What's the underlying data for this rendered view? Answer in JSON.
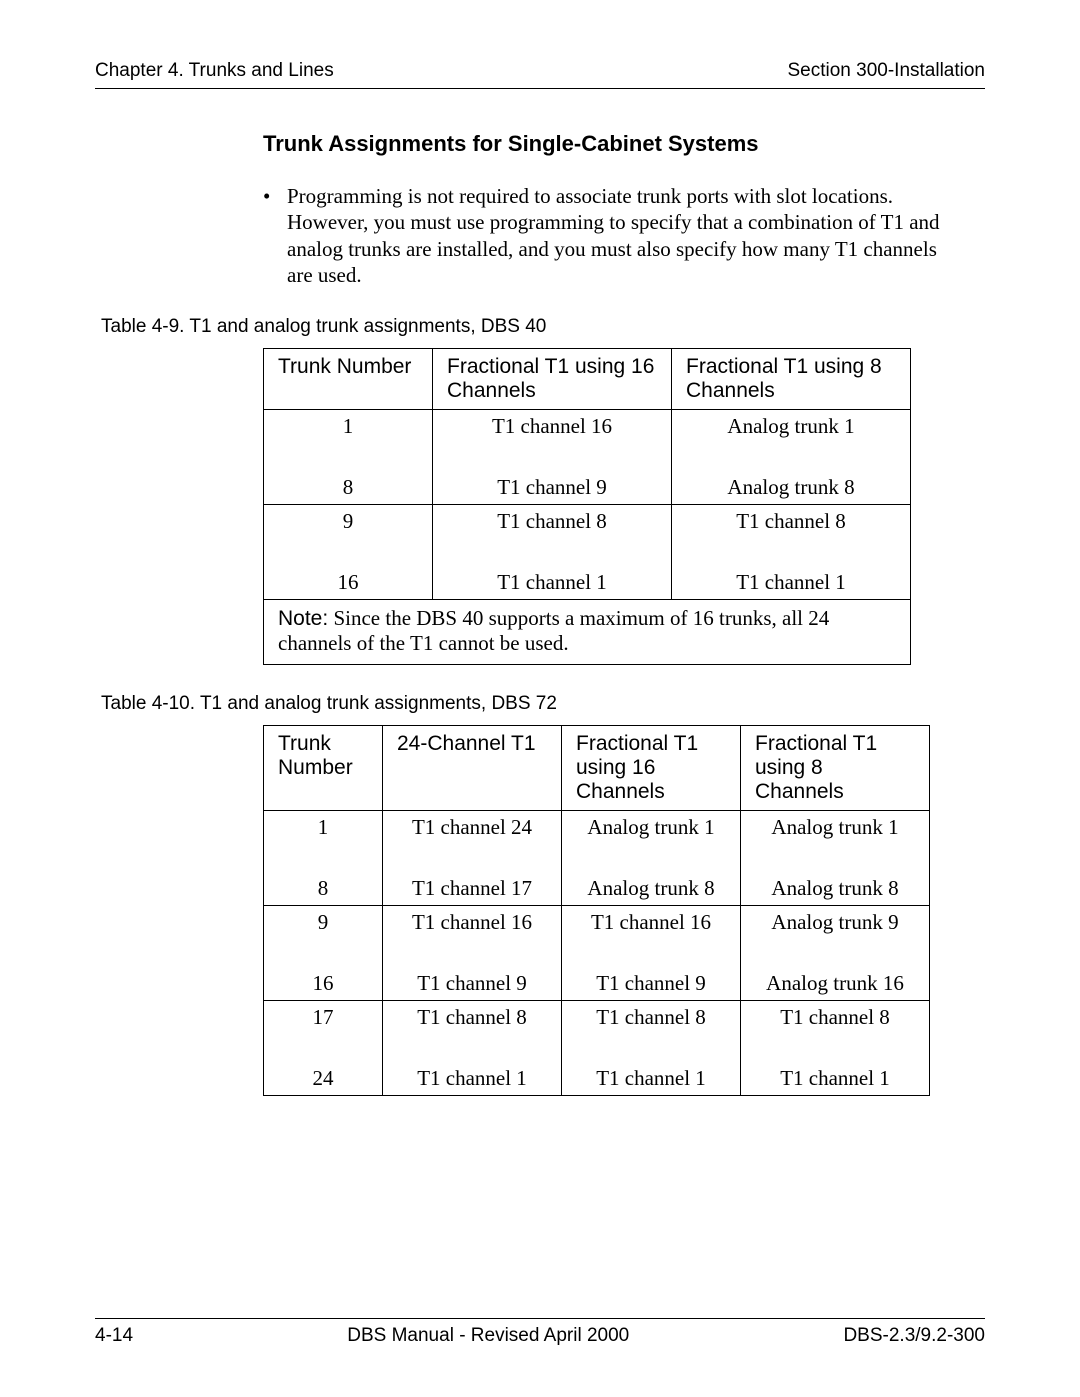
{
  "header": {
    "left": "Chapter 4. Trunks and Lines",
    "right": "Section 300-Installation"
  },
  "section_title": "Trunk Assignments for Single-Cabinet Systems",
  "bullet_text": "Programming is not required to associate trunk ports with slot locations. However, you must use programming to specify that a combination of T1 and analog trunks are installed, and you must also specify how many T1 channels are used.",
  "table1": {
    "caption": "Table 4-9.  T1 and analog trunk assignments, DBS 40",
    "headers": [
      "Trunk Number",
      "Fractional T1 using 16 Channels",
      "Fractional T1 using 8 Channels"
    ],
    "pairs": [
      {
        "top": [
          "1",
          "T1 channel 16",
          "Analog trunk 1"
        ],
        "bottom": [
          "8",
          "T1 channel 9",
          "Analog trunk 8"
        ]
      },
      {
        "top": [
          "9",
          "T1 channel 8",
          "T1 channel 8"
        ],
        "bottom": [
          "16",
          "T1 channel 1",
          "T1 channel 1"
        ]
      }
    ],
    "note_label": "Note:",
    "note_text": "Since the DBS 40 supports a maximum of 16 trunks, all 24 channels of the T1 cannot be used."
  },
  "table2": {
    "caption": "Table 4-10. T1 and analog trunk assignments, DBS 72",
    "headers": [
      "Trunk Number",
      "24-Channel T1",
      "Fractional T1 using 16 Channels",
      "Fractional T1 using 8 Channels"
    ],
    "pairs": [
      {
        "top": [
          "1",
          "T1 channel 24",
          "Analog trunk 1",
          "Analog trunk 1"
        ],
        "bottom": [
          "8",
          "T1 channel 17",
          "Analog trunk 8",
          "Analog trunk 8"
        ]
      },
      {
        "top": [
          "9",
          "T1 channel 16",
          "T1 channel 16",
          "Analog trunk 9"
        ],
        "bottom": [
          "16",
          "T1 channel 9",
          "T1 channel 9",
          "Analog trunk 16"
        ]
      },
      {
        "top": [
          "17",
          "T1 channel 8",
          "T1 channel 8",
          "T1 channel 8"
        ],
        "bottom": [
          "24",
          "T1 channel 1",
          "T1 channel 1",
          "T1 channel 1"
        ]
      }
    ]
  },
  "footer": {
    "left": "4-14",
    "center": "DBS Manual - Revised April 2000",
    "right": "DBS-2.3/9.2-300"
  }
}
